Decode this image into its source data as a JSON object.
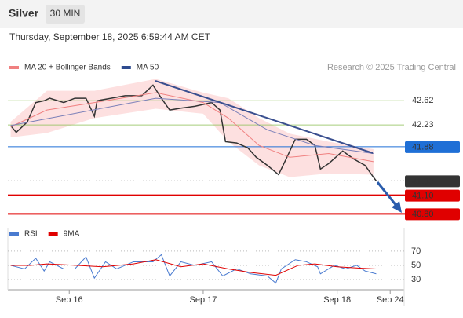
{
  "header": {
    "title": "Silver",
    "interval": "30 MIN",
    "timestamp": "Thursday, September 18, 2025 6:59:44 AM CET",
    "credit": "Research © 2025 Trading Central"
  },
  "chart_data": [
    {
      "type": "line",
      "xlim": [
        0,
        142
      ],
      "ylim": [
        40.64,
        43.04
      ],
      "series": [
        {
          "color": "#333333",
          "x": [
            1,
            3,
            7,
            10,
            13,
            15,
            20,
            24,
            28,
            31,
            32,
            37,
            42,
            48,
            52,
            55,
            58,
            62,
            67,
            73,
            76,
            78,
            82,
            86,
            89,
            93,
            97,
            100,
            103,
            107,
            110,
            112,
            115,
            120,
            124,
            128,
            131,
            132
          ],
          "values": [
            42.22,
            42.11,
            42.28,
            42.59,
            42.62,
            42.66,
            42.59,
            42.66,
            42.66,
            42.37,
            42.62,
            42.66,
            42.7,
            42.7,
            42.87,
            42.66,
            42.47,
            42.5,
            42.53,
            42.59,
            42.47,
            41.96,
            41.94,
            41.86,
            41.71,
            41.58,
            41.43,
            41.71,
            42.0,
            42.0,
            41.9,
            41.52,
            41.61,
            41.81,
            41.68,
            41.58,
            41.39,
            41.33
          ]
        },
        {
          "name": "MA 20 + Bollinger Bands",
          "color": "#f08080",
          "band_color": "#fde0e0",
          "x": [
            1,
            14,
            31,
            53,
            70,
            79,
            90,
            101,
            115,
            131
          ],
          "values": [
            42.2,
            42.47,
            42.59,
            42.75,
            42.59,
            42.34,
            41.9,
            41.71,
            41.77,
            41.64
          ],
          "upper": [
            42.28,
            42.78,
            42.78,
            42.97,
            42.75,
            42.66,
            42.34,
            42.09,
            41.96,
            41.84
          ],
          "lower": [
            42.03,
            42.1,
            42.34,
            42.49,
            42.41,
            41.96,
            41.58,
            41.39,
            41.45,
            41.43
          ]
        },
        {
          "name": "MA 50",
          "color": "#7a7fb8",
          "legend_color": "#2e4b8f",
          "x": [
            1,
            53,
            76,
            93,
            110,
            131
          ],
          "values": [
            42.22,
            42.66,
            42.59,
            42.15,
            41.9,
            41.77
          ]
        }
      ],
      "levels": [
        {
          "value": 42.62,
          "color": "#8fc25a",
          "box": false
        },
        {
          "value": 42.23,
          "color": "#8fc25a",
          "box": false
        },
        {
          "value": 41.88,
          "color": "#1f6fd6",
          "box": true
        },
        {
          "value": 41.33,
          "color": "#333333",
          "box": true,
          "dotted": true
        },
        {
          "value": 41.1,
          "label": "41.10",
          "color": "#e00000",
          "box": true
        },
        {
          "value": 40.8,
          "label": "40.80",
          "color": "#e00000",
          "box": true
        }
      ]
    },
    {
      "type": "line",
      "xlim": [
        0,
        142
      ],
      "ylim": [
        20,
        81
      ],
      "yticks": [
        30,
        50,
        70
      ],
      "xticks": [
        {
          "value": 22,
          "label": "Sep 16"
        },
        {
          "value": 70,
          "label": "Sep 17"
        },
        {
          "value": 118,
          "label": "Sep 18"
        },
        {
          "value": 137,
          "label": "Sep 24"
        }
      ],
      "series": [
        {
          "name": "RSI",
          "color": "#4a7bd0",
          "x": [
            1,
            6,
            10,
            13,
            15,
            20,
            24,
            28,
            31,
            35,
            39,
            45,
            52,
            55,
            58,
            62,
            67,
            73,
            77,
            82,
            87,
            93,
            96,
            98,
            103,
            107,
            111,
            112,
            117,
            121,
            125,
            128,
            132
          ],
          "values": [
            50,
            45,
            60,
            42,
            55,
            45,
            45,
            62,
            32,
            55,
            45,
            55,
            55,
            65,
            35,
            55,
            50,
            55,
            35,
            45,
            38,
            35,
            25,
            45,
            58,
            55,
            48,
            38,
            50,
            45,
            50,
            42,
            38
          ]
        },
        {
          "name": "9MA",
          "color": "#e00000",
          "x": [
            1,
            8,
            14,
            25,
            34,
            45,
            53,
            62,
            70,
            79,
            87,
            96,
            104,
            110,
            118,
            126,
            132
          ],
          "values": [
            50,
            50,
            52,
            50,
            48,
            52,
            58,
            48,
            52,
            45,
            40,
            36,
            50,
            52,
            48,
            46,
            45
          ]
        }
      ]
    }
  ]
}
